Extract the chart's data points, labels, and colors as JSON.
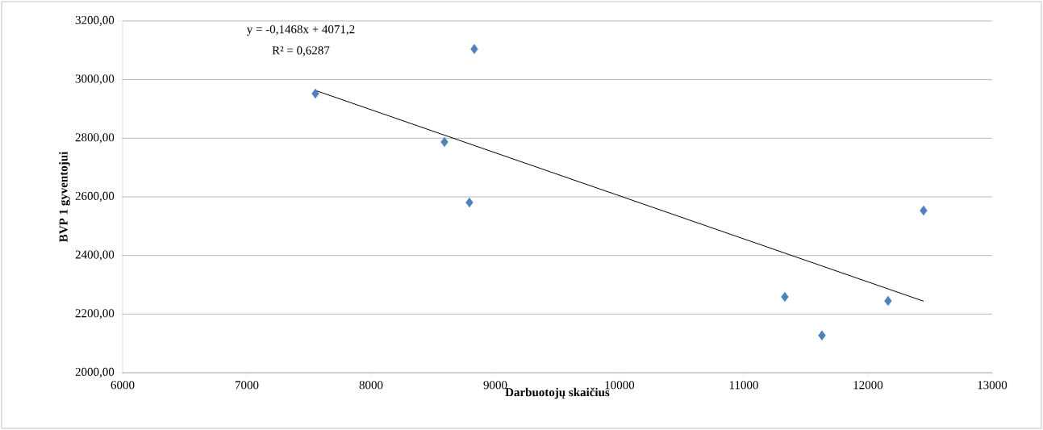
{
  "chart_data": {
    "type": "scatter",
    "xlabel": "Darbuotojų skaičius",
    "ylabel": "BVP 1 gyventojui",
    "xlim": [
      6000,
      13000
    ],
    "xticks": [
      6000,
      7000,
      8000,
      9000,
      10000,
      11000,
      12000,
      13000
    ],
    "ylim": [
      2000,
      3200
    ],
    "yticks": [
      {
        "value": 2000,
        "label": "2000,00"
      },
      {
        "value": 2200,
        "label": "2200,00"
      },
      {
        "value": 2400,
        "label": "2400,00"
      },
      {
        "value": 2600,
        "label": "2600,00"
      },
      {
        "value": 2800,
        "label": "2800,00"
      },
      {
        "value": 3000,
        "label": "3000,00"
      },
      {
        "value": 3200,
        "label": "3200,00"
      }
    ],
    "grid": "y",
    "marker": "diamond",
    "series": [
      {
        "color": "#4f81bd",
        "x": [
          7552,
          8831,
          8591,
          8792,
          11331,
          11630,
          12162,
          12448
        ],
        "values": [
          2952,
          3104,
          2787,
          2581,
          2259,
          2127,
          2245,
          2553
        ]
      },
      {
        "type": "line",
        "marker": "none",
        "color": "#000000",
        "x": [
          7552,
          12448
        ],
        "values": [
          2963,
          2244
        ]
      }
    ],
    "annotations": [
      "y = -0,1468x + 4071,2",
      "R² = 0,6287"
    ]
  }
}
